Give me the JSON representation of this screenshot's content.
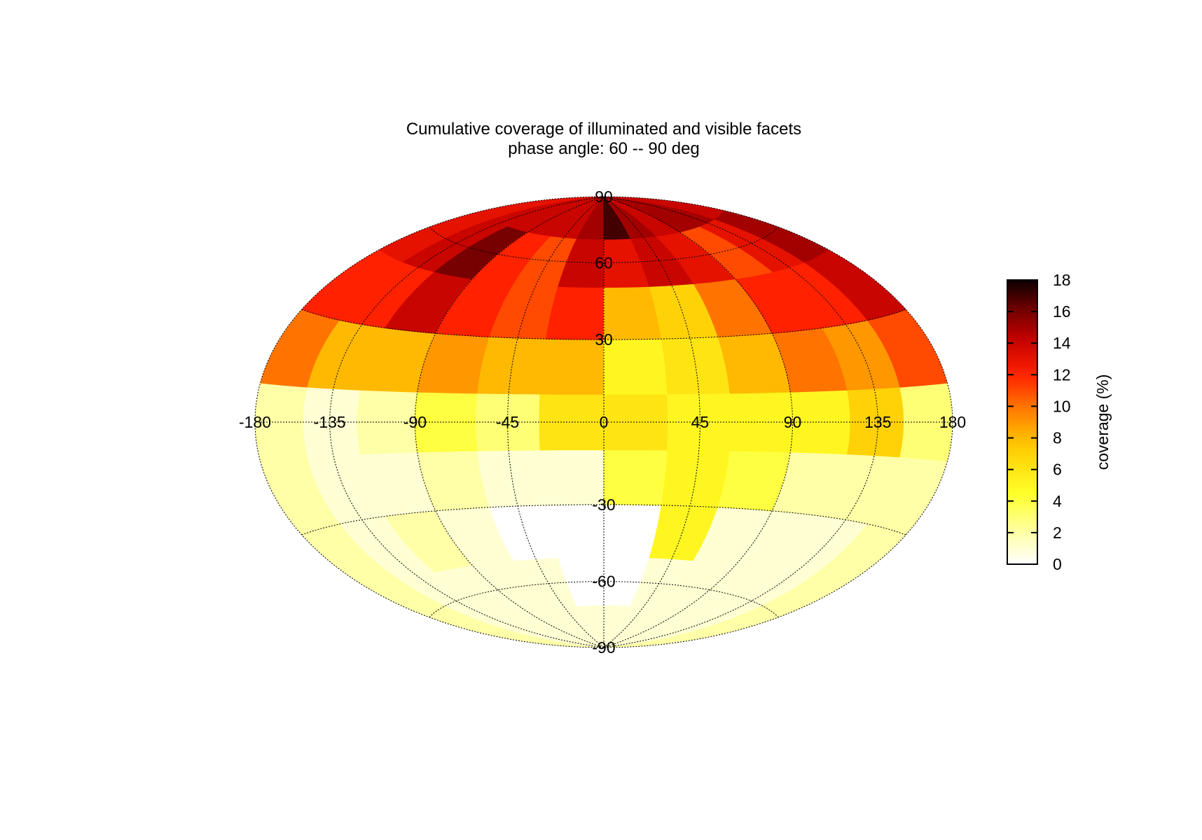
{
  "chart_data": {
    "type": "heatmap",
    "projection": "Hammer-Aitoff (ellipse)",
    "title": "Cumulative coverage of illuminated and visible facets",
    "subtitle": "phase angle:  60 --  90 deg",
    "lon_ticks": [
      "-180",
      "-135",
      "-90",
      "-45",
      "0",
      "45",
      "90",
      "135",
      "180"
    ],
    "lat_ticks": [
      "90",
      "60",
      "30",
      "-30",
      "-60",
      "-90"
    ],
    "grid": true,
    "lat_bands": [
      -90,
      -70,
      -50,
      -30,
      -10,
      10,
      30,
      50,
      70,
      90
    ],
    "lon_edges": [
      -180,
      -150,
      -120,
      -90,
      -60,
      -30,
      0,
      30,
      60,
      90,
      120,
      150,
      180
    ],
    "coverage_percent": [
      [
        2,
        1,
        1,
        1,
        1,
        1,
        1,
        1,
        1,
        1,
        1,
        2
      ],
      [
        2,
        1,
        1,
        1,
        1,
        0,
        0,
        1,
        1,
        1,
        1,
        2
      ],
      [
        2,
        1,
        2,
        1,
        0,
        0,
        0,
        5,
        1,
        1,
        1,
        2
      ],
      [
        2,
        1,
        1,
        2,
        1,
        1,
        4,
        5,
        4,
        2,
        2,
        2
      ],
      [
        2,
        1,
        2,
        4,
        3,
        6,
        6,
        5,
        5,
        5,
        7,
        3
      ],
      [
        10,
        8,
        8,
        9,
        8,
        8,
        5,
        6,
        8,
        10,
        9,
        11
      ],
      [
        12,
        12,
        14,
        12,
        11,
        12,
        8,
        7,
        10,
        12,
        12,
        14
      ],
      [
        13,
        14,
        16,
        12,
        11,
        14,
        13,
        14,
        13,
        11,
        13,
        15
      ],
      [
        13,
        14,
        14,
        14,
        14,
        15,
        17,
        15,
        14,
        15,
        15,
        14
      ]
    ],
    "colorbar": {
      "label": "coverage (%)",
      "min": 0,
      "max": 18,
      "ticks": [
        "0",
        "2",
        "4",
        "6",
        "8",
        "10",
        "12",
        "14",
        "16",
        "18"
      ],
      "colormap": "hot (reversed): white - yellow - orange - red - black"
    }
  }
}
